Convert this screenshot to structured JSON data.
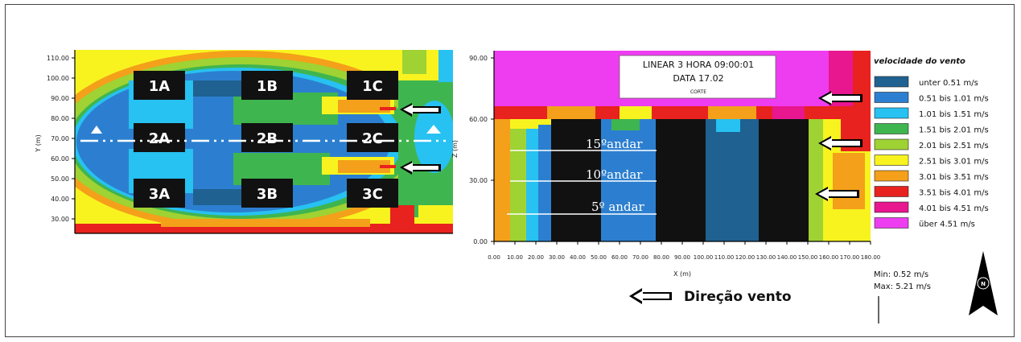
{
  "colors": {
    "unter": "#1f6191",
    "c051": "#2c7fd0",
    "c101": "#27c1f2",
    "c151": "#3fb54f",
    "c201": "#9fd233",
    "c251": "#f8f31f",
    "c301": "#f4a01a",
    "c351": "#e8221e",
    "c401": "#e8168f",
    "uber": "#ee3df0",
    "building": "#111111"
  },
  "plan": {
    "y_label": "Y (m)",
    "y_ticks": [
      "110.00",
      "100.00",
      "90.00",
      "80.00",
      "70.00",
      "60.00",
      "50.00",
      "40.00",
      "30.00"
    ],
    "blocks": [
      "1A",
      "1B",
      "1C",
      "2A",
      "2B",
      "2C",
      "3A",
      "3B",
      "3C"
    ]
  },
  "section": {
    "z_label": "Z (m)",
    "x_label": "X (m)",
    "z_ticks": [
      "90.00",
      "60.00",
      "30.00",
      "0.00"
    ],
    "x_ticks": [
      "0.00",
      "10.00",
      "20.00",
      "30.00",
      "40.00",
      "50.00",
      "60.00",
      "70.00",
      "80.00",
      "90.00",
      "100.00",
      "110.00",
      "120.00",
      "130.00",
      "140.00",
      "150.00",
      "160.00",
      "170.00",
      "180.00"
    ],
    "info_line1": "LINEAR 3   HORA 09:00:01",
    "info_line2": "DATA 17.02",
    "info_line3": "CORTE",
    "floors": [
      "15ºandar",
      "10ºandar",
      "5º andar"
    ]
  },
  "legend": {
    "title": "velocidade do vento",
    "items": [
      {
        "label": "unter 0.51 m/s",
        "color": "#1f6191"
      },
      {
        "label": "0.51 bis 1.01 m/s",
        "color": "#2c7fd0"
      },
      {
        "label": "1.01 bis 1.51 m/s",
        "color": "#27c1f2"
      },
      {
        "label": "1.51 bis 2.01 m/s",
        "color": "#3fb54f"
      },
      {
        "label": "2.01 bis 2.51 m/s",
        "color": "#9fd233"
      },
      {
        "label": "2.51 bis 3.01 m/s",
        "color": "#f8f31f"
      },
      {
        "label": "3.01 bis 3.51 m/s",
        "color": "#f4a01a"
      },
      {
        "label": "3.51 bis 4.01 m/s",
        "color": "#e8221e"
      },
      {
        "label": "4.01 bis 4.51 m/s",
        "color": "#e8168f"
      },
      {
        "label": "über 4.51 m/s",
        "color": "#ee3df0"
      }
    ],
    "min": "Min: 0.52 m/s",
    "max": "Max: 5.21 m/s",
    "north": "N"
  },
  "wind_direction": "Direção vento"
}
